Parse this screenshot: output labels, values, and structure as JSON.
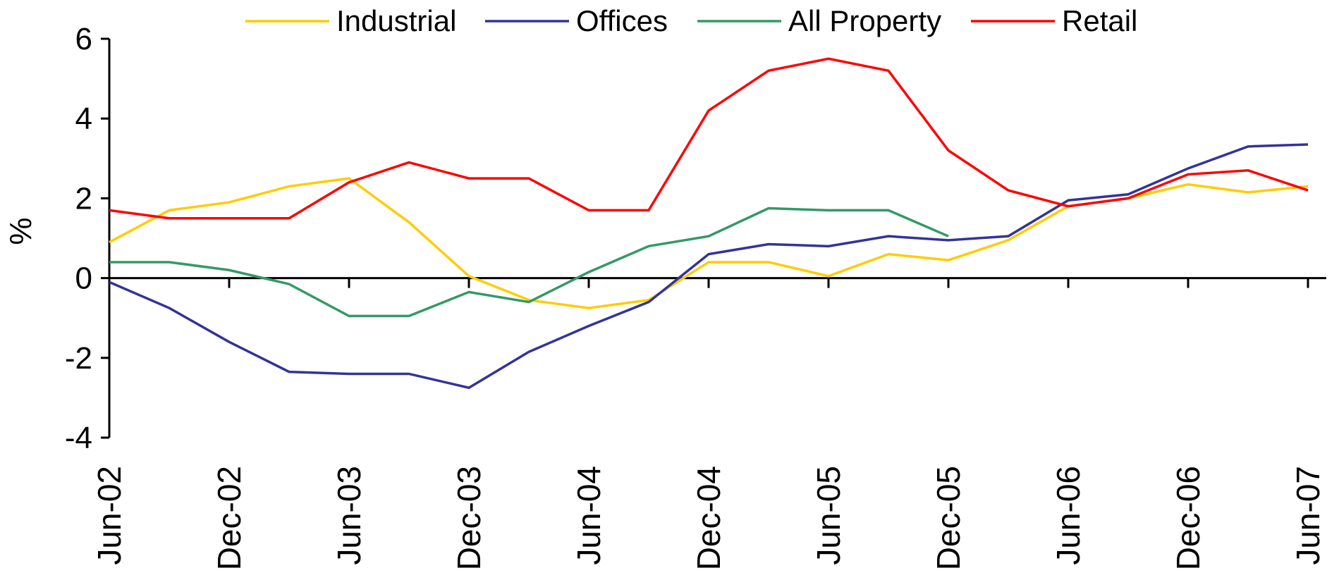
{
  "chart_data": {
    "type": "line",
    "ylabel": "%",
    "categories": [
      "Jun-02",
      null,
      "Dec-02",
      null,
      "Jun-03",
      null,
      "Dec-03",
      null,
      "Jun-04",
      null,
      "Dec-04",
      null,
      "Jun-05",
      null,
      "Dec-05",
      null,
      "Jun-06",
      null,
      "Dec-06",
      null,
      "Jun-07"
    ],
    "series": [
      {
        "name": "Industrial",
        "color": "#ffcc00",
        "values": [
          0.9,
          1.7,
          1.9,
          2.3,
          2.5,
          1.4,
          0.05,
          -0.55,
          -0.75,
          -0.55,
          0.4,
          0.4,
          0.05,
          0.6,
          0.45,
          0.95,
          1.8,
          2.0,
          2.35,
          2.15,
          2.3
        ]
      },
      {
        "name": "Offices",
        "color": "#333399",
        "values": [
          -0.1,
          -0.75,
          -1.6,
          -2.35,
          -2.4,
          -2.4,
          -2.75,
          -1.85,
          -1.2,
          -0.6,
          0.6,
          0.85,
          0.8,
          1.05,
          0.95,
          1.05,
          1.95,
          2.1,
          2.75,
          3.3,
          3.35
        ]
      },
      {
        "name": "All Property",
        "color": "#339966",
        "values": [
          0.4,
          0.4,
          0.2,
          -0.15,
          -0.95,
          -0.95,
          -0.35,
          -0.6,
          0.15,
          0.8,
          1.05,
          1.75,
          1.7,
          1.7,
          1.05,
          null,
          null,
          null,
          null,
          null,
          null
        ]
      },
      {
        "name": "Retail",
        "color": "#ff0000",
        "values": [
          1.7,
          1.5,
          1.5,
          1.5,
          2.4,
          2.9,
          2.5,
          2.5,
          1.7,
          1.7,
          4.2,
          5.2,
          5.5,
          5.2,
          3.2,
          2.2,
          1.8,
          2.0,
          2.6,
          2.7,
          2.2
        ]
      }
    ],
    "ylim": [
      -4,
      6
    ],
    "yticks": [
      -4,
      -2,
      0,
      2,
      4,
      6
    ],
    "legend": "top"
  }
}
